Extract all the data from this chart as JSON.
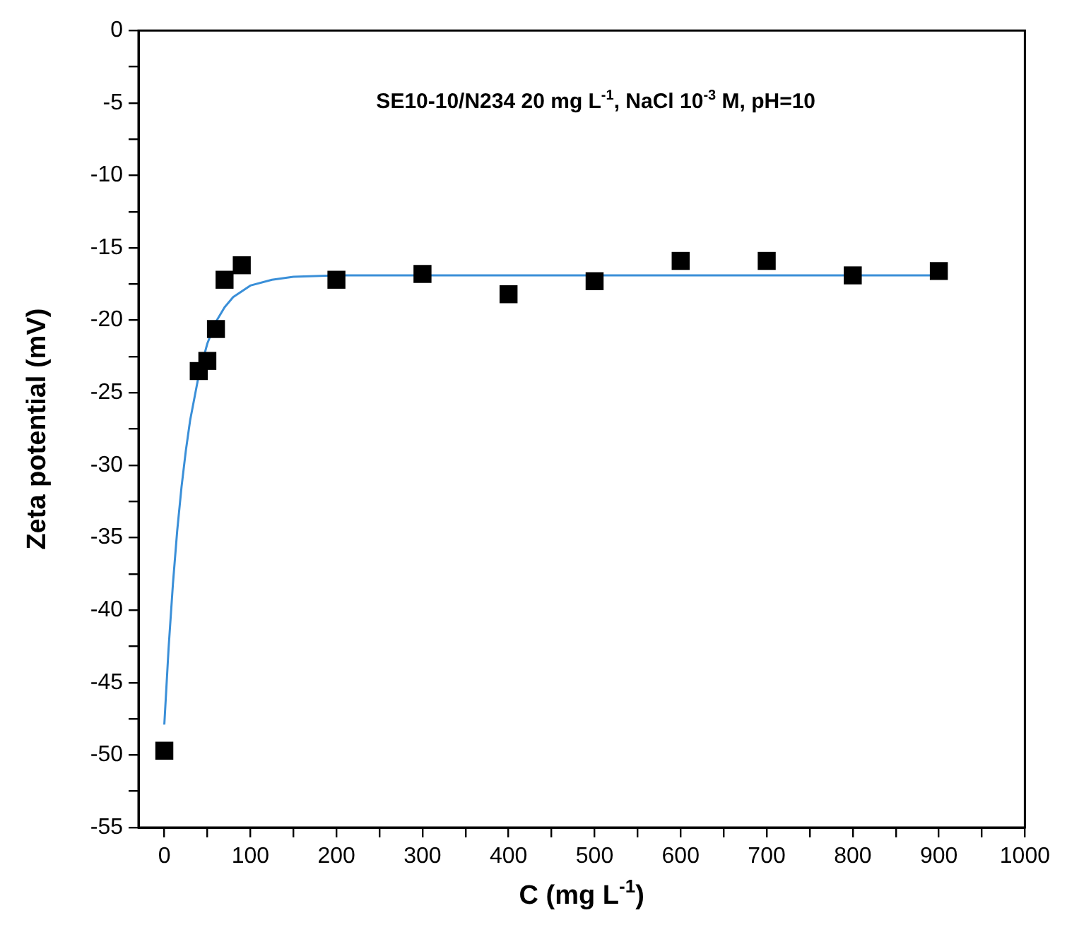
{
  "chart_data": {
    "type": "scatter",
    "xlabel": "C (mg L$^{-1}$)",
    "ylabel": "Zeta potential (mV)",
    "annotations": [
      "SE10-10/N234 20 mg L$^{-1}$, NaCl 10$^{-3}$ M, pH=10"
    ],
    "xlim": [
      -30,
      1000
    ],
    "xticks": [
      0,
      {
        "value": 50,
        "label": null
      },
      100,
      {
        "value": 150,
        "label": null
      },
      200,
      {
        "value": 250,
        "label": null
      },
      300,
      {
        "value": 350,
        "label": null
      },
      400,
      {
        "value": 450,
        "label": null
      },
      500,
      {
        "value": 550,
        "label": null
      },
      600,
      {
        "value": 650,
        "label": null
      },
      700,
      {
        "value": 750,
        "label": null
      },
      800,
      {
        "value": 850,
        "label": null
      },
      900,
      {
        "value": 950,
        "label": null
      },
      1000
    ],
    "ylim": [
      -55,
      0
    ],
    "yticks": [
      -55,
      {
        "value": -52.5,
        "label": null
      },
      -50,
      {
        "value": -47.5,
        "label": null
      },
      -45,
      {
        "value": -42.5,
        "label": null
      },
      -40,
      {
        "value": -37.5,
        "label": null
      },
      -35,
      {
        "value": -32.5,
        "label": null
      },
      -30,
      {
        "value": -27.5,
        "label": null
      },
      -25,
      {
        "value": -22.5,
        "label": null
      },
      -20,
      {
        "value": -17.5,
        "label": null
      },
      -15,
      {
        "value": -12.5,
        "label": null
      },
      -10,
      {
        "value": -7.5,
        "label": null
      },
      -5,
      {
        "value": -2.5,
        "label": null
      },
      0
    ],
    "grid": false,
    "legend": false,
    "series": [
      {
        "marker": "square",
        "color": "#000000",
        "x": [
          0,
          40,
          50,
          60,
          70,
          90,
          200,
          300,
          400,
          500,
          600,
          700,
          800,
          900
        ],
        "values": [
          -49.7,
          -23.5,
          -22.8,
          -20.6,
          -17.2,
          -16.2,
          -17.2,
          -16.8,
          -18.2,
          -17.3,
          -15.9,
          -15.9,
          -16.9,
          -16.6
        ]
      },
      {
        "type": "line",
        "marker": "none",
        "line_style": "solid",
        "color": "#3a8fd8",
        "x": [
          0,
          5,
          10,
          15,
          20,
          25,
          30,
          40,
          50,
          60,
          70,
          80,
          100,
          125,
          150,
          200,
          900
        ],
        "values": [
          -47.9,
          -42.6,
          -38.2,
          -34.5,
          -31.5,
          -29.0,
          -26.9,
          -23.8,
          -21.6,
          -20.1,
          -19.1,
          -18.4,
          -17.6,
          -17.2,
          -17.0,
          -16.9,
          -16.9
        ]
      }
    ]
  }
}
